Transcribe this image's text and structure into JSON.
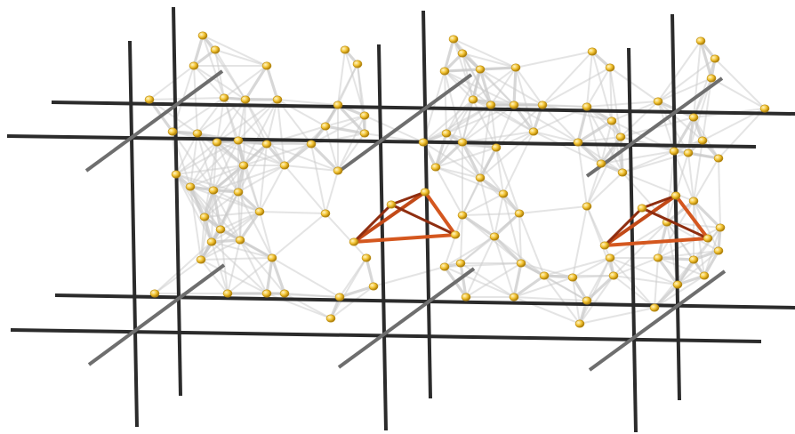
{
  "figure": {
    "description_text": "",
    "colors": {
      "background": "#ffffff",
      "rod_dark": "#2b2b2b",
      "rod_gray": "#6e6e6e",
      "net": "#c9c9c9",
      "node": "#f2c230",
      "node_edge": "#b88a10",
      "tetra": "#d4571f",
      "tetra_dark": "#8f2e10"
    },
    "elements": [
      "lattice-rods",
      "atom-network",
      "atom-nodes",
      "tetrahedra"
    ]
  }
}
